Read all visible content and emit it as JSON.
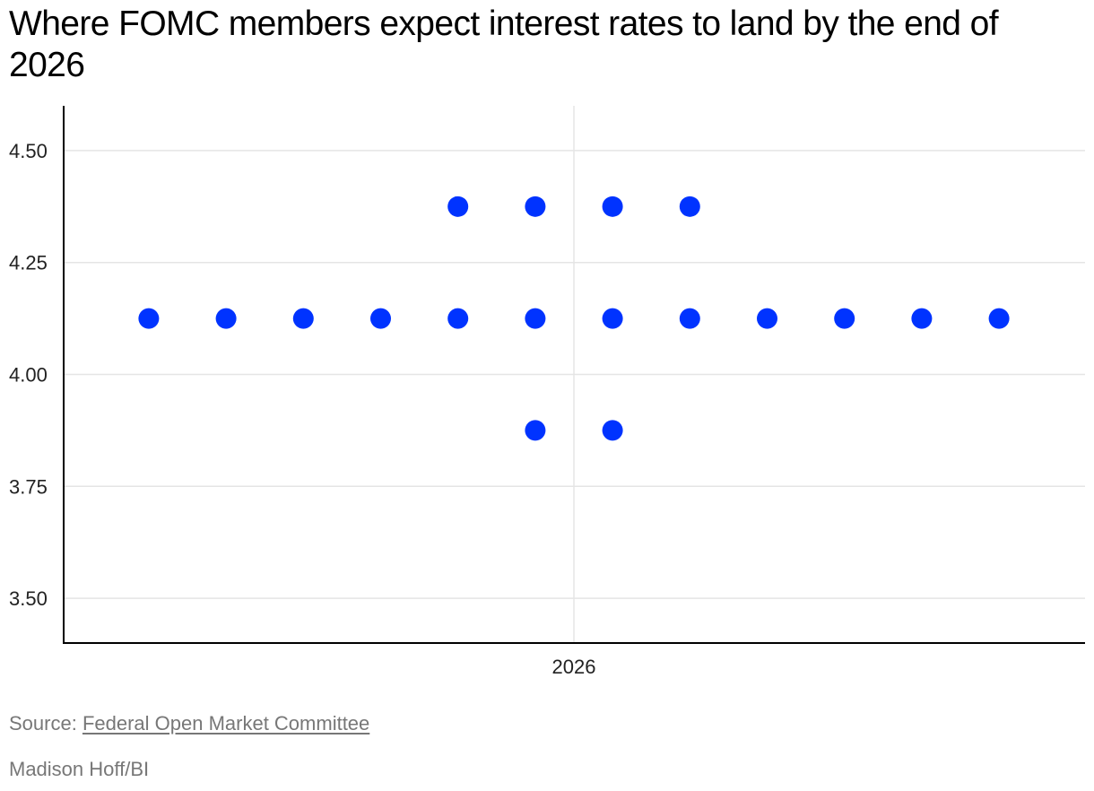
{
  "title": "Where FOMC members expect interest rates to land by the end of 2026",
  "source": {
    "prefix": "Source: ",
    "link_text": "Federal Open Market Committee"
  },
  "credit": "Madison Hoff/BI",
  "colors": {
    "dot": "#0033ff",
    "grid": "#e5e5e5",
    "axis": "#000000"
  },
  "chart_data": {
    "type": "scatter",
    "title": "Where FOMC members expect interest rates to land by the end of 2026",
    "xlabel": "",
    "ylabel": "",
    "categories": [
      "2026"
    ],
    "ylim": [
      3.4,
      4.6
    ],
    "yticks": [
      "4.50",
      "4.25",
      "4.00",
      "3.75",
      "3.50"
    ],
    "grid": true,
    "legend": "none",
    "levels": [
      {
        "rate": 4.375,
        "count": 4
      },
      {
        "rate": 4.125,
        "count": 12
      },
      {
        "rate": 3.875,
        "count": 2
      }
    ]
  }
}
